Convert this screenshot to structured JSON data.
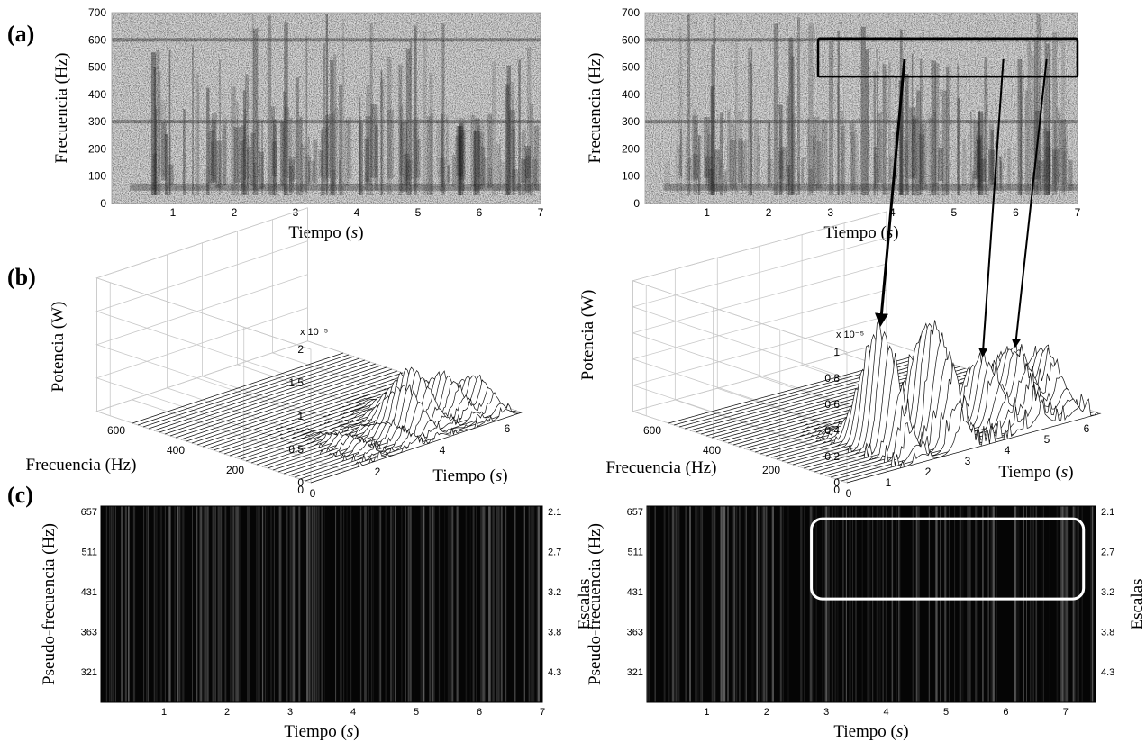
{
  "panel_labels": [
    "(a)",
    "(b)",
    "(c)"
  ],
  "chart_data": [
    {
      "id": "a-left",
      "type": "heatmap",
      "subtype": "spectrogram",
      "xlabel": "Tiempo (s)",
      "ylabel": "Frecuencia (Hz)",
      "xlim": [
        0,
        7
      ],
      "ylim": [
        0,
        700
      ],
      "xticks": [
        "1",
        "2",
        "3",
        "4",
        "5",
        "6",
        "7"
      ],
      "yticks": [
        "0",
        "100",
        "200",
        "300",
        "400",
        "500",
        "600",
        "700"
      ],
      "colormap": "gray-inverted",
      "tonal_lines_hz": [
        300,
        600
      ],
      "dark_band_hz": [
        40,
        300
      ]
    },
    {
      "id": "a-right",
      "type": "heatmap",
      "subtype": "spectrogram",
      "xlabel": "Tiempo (s)",
      "ylabel": "Frecuencia (Hz)",
      "xlim": [
        0,
        7
      ],
      "ylim": [
        0,
        700
      ],
      "xticks": [
        "1",
        "2",
        "3",
        "4",
        "5",
        "6",
        "7"
      ],
      "yticks": [
        "0",
        "100",
        "200",
        "300",
        "400",
        "500",
        "600",
        "700"
      ],
      "colormap": "gray-inverted",
      "tonal_lines_hz": [
        300,
        600
      ],
      "highlight_box": {
        "x": [
          2.8,
          7.0
        ],
        "y": [
          465,
          605
        ]
      },
      "arrow_sources": [
        [
          4.2,
          530
        ],
        [
          5.8,
          530
        ],
        [
          6.5,
          530
        ]
      ]
    },
    {
      "id": "b-left",
      "type": "surface",
      "subtype": "3d waterfall",
      "zlabel": "Potencia (W)",
      "ylabel": "Frecuencia (Hz)",
      "xlabel": "Tiempo (s)",
      "zscale": "x 10⁻⁵",
      "zticks": [
        "0",
        "0.5",
        "1",
        "1.5",
        "2"
      ],
      "zlim": [
        0,
        2
      ],
      "xticks": [
        "0",
        "2",
        "4",
        "6"
      ],
      "yticks": [
        "0",
        "200",
        "400",
        "600"
      ],
      "peaks": [
        {
          "t": 4.0,
          "f": 120,
          "p": 0.62
        },
        {
          "t": 4.6,
          "f": 160,
          "p": 0.74
        },
        {
          "t": 5.4,
          "f": 140,
          "p": 0.55
        },
        {
          "t": 6.0,
          "f": 100,
          "p": 0.48
        },
        {
          "t": 3.2,
          "f": 80,
          "p": 0.25
        },
        {
          "t": 2.2,
          "f": 110,
          "p": 0.18
        }
      ]
    },
    {
      "id": "b-right",
      "type": "surface",
      "subtype": "3d waterfall",
      "zlabel": "Potencia (W)",
      "ylabel": "Frecuencia (Hz)",
      "xlabel": "Tiempo (s)",
      "zscale": "x 10⁻⁵",
      "zticks": [
        "0",
        "0.2",
        "0.4",
        "0.6",
        "0.8",
        "1"
      ],
      "zlim": [
        0,
        1
      ],
      "xticks": [
        "0",
        "1",
        "2",
        "3",
        "4",
        "5",
        "6"
      ],
      "yticks": [
        "0",
        "200",
        "400",
        "600"
      ],
      "peaks": [
        {
          "t": 1.9,
          "f": 140,
          "p": 0.92
        },
        {
          "t": 2.8,
          "f": 120,
          "p": 0.55
        },
        {
          "t": 3.0,
          "f": 90,
          "p": 0.58
        },
        {
          "t": 4.4,
          "f": 130,
          "p": 0.48
        },
        {
          "t": 4.9,
          "f": 100,
          "p": 0.52
        },
        {
          "t": 5.3,
          "f": 140,
          "p": 0.47
        },
        {
          "t": 5.8,
          "f": 110,
          "p": 0.45
        }
      ]
    },
    {
      "id": "c-left",
      "type": "heatmap",
      "subtype": "scalogram",
      "xlabel": "Tiempo (s)",
      "ylabel": "Pseudo-frecuencia (Hz)",
      "y2label": "Escalas",
      "xlim": [
        0,
        7
      ],
      "xticks": [
        "1",
        "2",
        "3",
        "4",
        "5",
        "6",
        "7"
      ],
      "yticks": [
        "657",
        "511",
        "431",
        "363",
        "321"
      ],
      "y2ticks": [
        "2.1",
        "2.7",
        "3.2",
        "3.8",
        "4.3"
      ],
      "colormap": "gray"
    },
    {
      "id": "c-right",
      "type": "heatmap",
      "subtype": "scalogram",
      "xlabel": "Tiempo (s)",
      "ylabel": "Pseudo-frecuencia (Hz)",
      "y2label": "Escalas",
      "xlim": [
        0,
        7.5
      ],
      "xticks": [
        "1",
        "2",
        "3",
        "4",
        "5",
        "6",
        "7"
      ],
      "yticks": [
        "657",
        "511",
        "431",
        "363",
        "321"
      ],
      "y2ticks": [
        "2.1",
        "2.7",
        "3.2",
        "3.8",
        "4.3"
      ],
      "colormap": "gray",
      "highlight_box": {
        "x": [
          2.75,
          7.3
        ],
        "scales": [
          2.2,
          3.3
        ]
      }
    }
  ]
}
